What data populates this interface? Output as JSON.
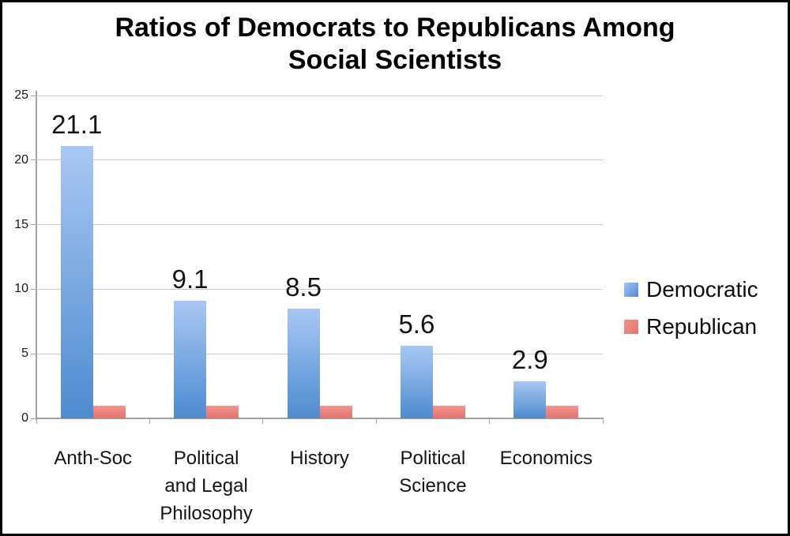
{
  "title": {
    "line1": "Ratios of Democrats to Republicans Among",
    "line2": "Social Scientists"
  },
  "chart_data": {
    "type": "bar",
    "title": "Ratios of Democrats to Republicans Among Social Scientists",
    "categories": [
      "Anth-Soc",
      "Political and Legal Philosophy",
      "History",
      "Political Science",
      "Economics"
    ],
    "category_label_lines": [
      [
        "Anth-Soc"
      ],
      [
        "Political",
        "and Legal",
        "Philosophy"
      ],
      [
        "History"
      ],
      [
        "Political",
        "Science"
      ],
      [
        "Economics"
      ]
    ],
    "series": [
      {
        "name": "Democratic",
        "values": [
          21.1,
          9.1,
          8.5,
          5.6,
          2.9
        ],
        "data_labels": [
          "21.1",
          "9.1",
          "8.5",
          "5.6",
          "2.9"
        ],
        "color_top": "#a9c7f2",
        "color_bottom": "#4e8bd0"
      },
      {
        "name": "Republican",
        "values": [
          1,
          1,
          1,
          1,
          1
        ],
        "data_labels": [],
        "color_top": "#f0958e",
        "color_bottom": "#e4726b"
      }
    ],
    "ylabel": "",
    "xlabel": "",
    "ylim": [
      0,
      25
    ],
    "ytick_interval": 5,
    "ytick_labels": [
      "0",
      "5",
      "10",
      "15",
      "20",
      "25"
    ],
    "grid": true,
    "legend_position": "right",
    "colors": {
      "gridline": "#c9c9c9",
      "axis": "#a3a3a3",
      "text": "#141414"
    }
  }
}
